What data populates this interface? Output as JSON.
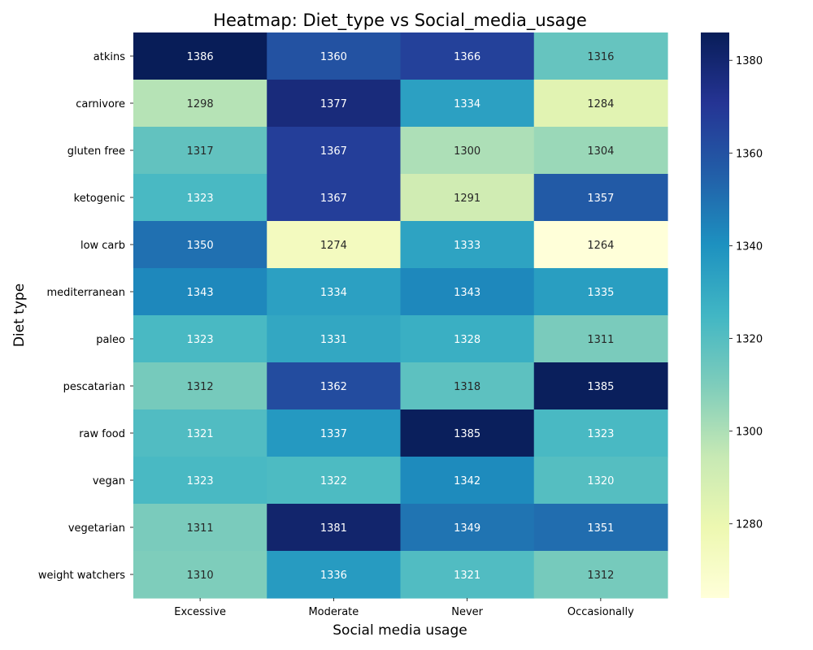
{
  "chart_data": {
    "type": "heatmap",
    "title": "Heatmap: Diet_type vs Social_media_usage",
    "xlabel": "Social media usage",
    "ylabel": "Diet type",
    "x_categories": [
      "Excessive",
      "Moderate",
      "Never",
      "Occasionally"
    ],
    "y_categories": [
      "atkins",
      "carnivore",
      "gluten free",
      "ketogenic",
      "low carb",
      "mediterranean",
      "paleo",
      "pescatarian",
      "raw food",
      "vegan",
      "vegetarian",
      "weight watchers"
    ],
    "values": [
      [
        1386,
        1360,
        1366,
        1316
      ],
      [
        1298,
        1377,
        1334,
        1284
      ],
      [
        1317,
        1367,
        1300,
        1304
      ],
      [
        1323,
        1367,
        1291,
        1357
      ],
      [
        1350,
        1274,
        1333,
        1264
      ],
      [
        1343,
        1334,
        1343,
        1335
      ],
      [
        1323,
        1331,
        1328,
        1311
      ],
      [
        1312,
        1362,
        1318,
        1385
      ],
      [
        1321,
        1337,
        1385,
        1323
      ],
      [
        1323,
        1322,
        1342,
        1320
      ],
      [
        1311,
        1381,
        1349,
        1351
      ],
      [
        1310,
        1336,
        1321,
        1312
      ]
    ],
    "colormap": "YlGnBu",
    "color_range": [
      1264,
      1386
    ],
    "colorbar_ticks": [
      1280,
      1300,
      1320,
      1340,
      1360,
      1380
    ],
    "grid": false
  }
}
